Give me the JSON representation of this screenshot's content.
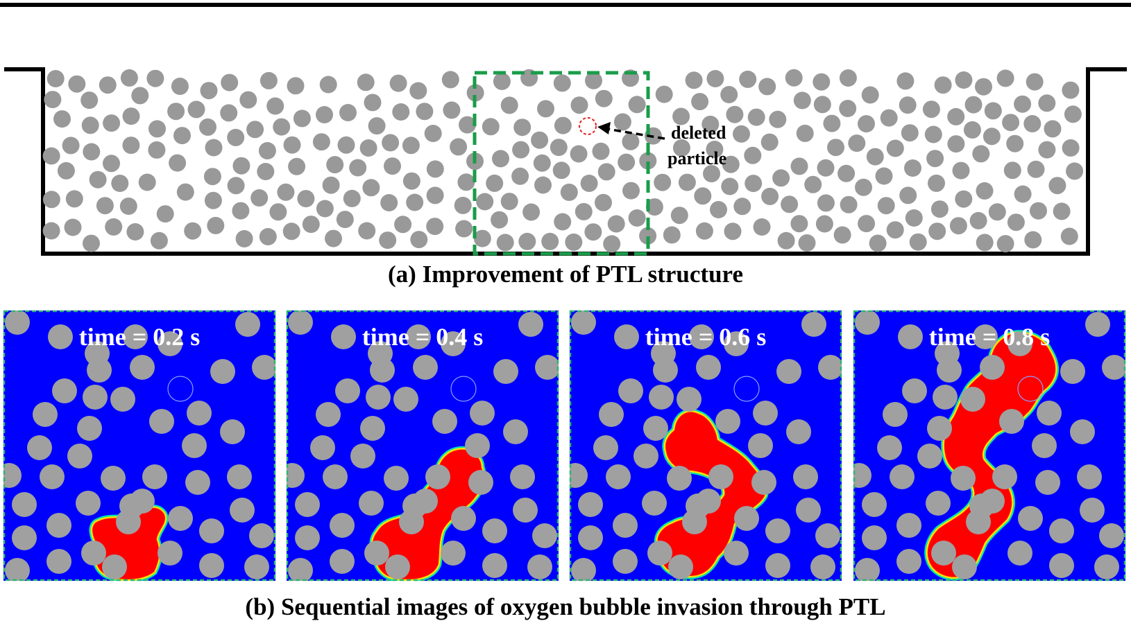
{
  "panel_a": {
    "caption": "(a) Improvement of PTL structure",
    "annotation_line1": "deleted",
    "annotation_line2": "particle",
    "colors": {
      "particle": "#999999",
      "highlight_box": "#1a9c4a",
      "deleted_marker": "#e02020",
      "wall": "#000000"
    }
  },
  "panel_b": {
    "caption": "(b) Sequential images of oxygen bubble invasion through PTL",
    "frames": [
      {
        "time_label": "time = 0.2 s"
      },
      {
        "time_label": "time = 0.4 s"
      },
      {
        "time_label": "time = 0.6 s"
      },
      {
        "time_label": "time = 0.8 s"
      }
    ],
    "colors": {
      "liquid": "#0000ff",
      "bubble": "#ff0000",
      "interface": "#00e5b0",
      "particle": "#a0a0a0",
      "frame_border": "#2bb673"
    }
  }
}
